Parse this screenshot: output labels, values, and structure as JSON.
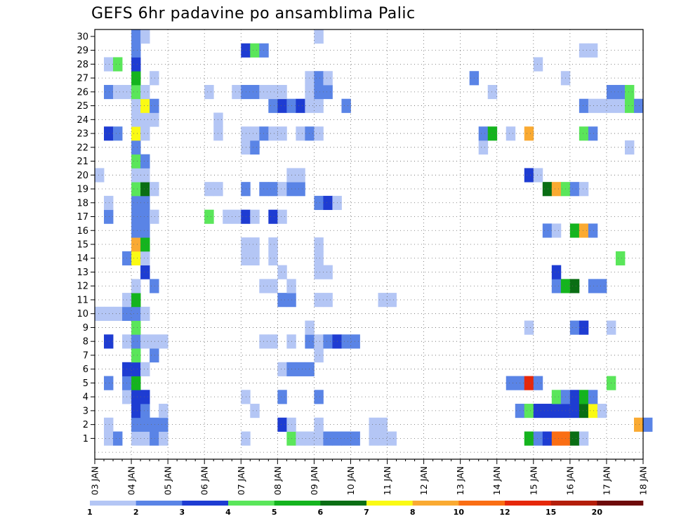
{
  "chart_data": {
    "type": "heatmap",
    "title": "GEFS 6hr padavine po ansamblima Palic",
    "xlabel": "",
    "ylabel": "",
    "x_ticks": [
      "03 JAN",
      "04 JAN",
      "05 JAN",
      "06 JAN",
      "07 JAN",
      "08 JAN",
      "09 JAN",
      "10 JAN",
      "11 JAN",
      "12 JAN",
      "13 JAN",
      "14 JAN",
      "15 JAN",
      "16 JAN",
      "17 JAN",
      "18 JAN"
    ],
    "y_ticks": [
      "1",
      "2",
      "3",
      "4",
      "5",
      "6",
      "7",
      "8",
      "9",
      "10",
      "11",
      "12",
      "13",
      "14",
      "15",
      "16",
      "17",
      "18",
      "19",
      "20",
      "21",
      "22",
      "23",
      "24",
      "25",
      "26",
      "27",
      "28",
      "29",
      "30"
    ],
    "time_steps_per_day": 4,
    "grid": true,
    "legend_position": "bottom",
    "colorbar": {
      "labels": [
        "1",
        "2",
        "3",
        "4",
        "5",
        "6",
        "7",
        "8",
        "10",
        "12",
        "15",
        "20"
      ],
      "colors": [
        "#b4c6f5",
        "#5a84e6",
        "#1e3cd2",
        "#5ae65a",
        "#14b41e",
        "#0a6e14",
        "#fafa14",
        "#faaa32",
        "#fa6e14",
        "#e6280a",
        "#b41e0a",
        "#6e0a0a"
      ]
    },
    "cells": [
      {
        "m": 1,
        "t": [
          [
            1,
            1
          ],
          [
            2,
            2
          ],
          [
            4,
            1
          ],
          [
            5,
            1
          ],
          [
            6,
            2
          ],
          [
            7,
            1
          ],
          [
            16,
            1
          ],
          [
            21,
            4
          ],
          [
            22,
            1
          ],
          [
            23,
            1
          ],
          [
            24,
            1
          ],
          [
            25,
            2
          ],
          [
            26,
            2
          ],
          [
            27,
            2
          ],
          [
            28,
            2
          ],
          [
            30,
            1
          ],
          [
            31,
            1
          ],
          [
            32,
            1
          ],
          [
            47,
            5
          ],
          [
            48,
            2
          ],
          [
            49,
            3
          ],
          [
            50,
            9
          ],
          [
            51,
            9
          ],
          [
            52,
            6
          ],
          [
            53,
            1
          ]
        ]
      },
      {
        "m": 2,
        "t": [
          [
            1,
            1
          ],
          [
            4,
            2
          ],
          [
            5,
            2
          ],
          [
            6,
            2
          ],
          [
            7,
            2
          ],
          [
            20,
            3
          ],
          [
            21,
            1
          ],
          [
            24,
            1
          ],
          [
            30,
            1
          ],
          [
            31,
            1
          ],
          [
            59,
            8
          ],
          [
            60,
            2
          ]
        ]
      },
      {
        "m": 3,
        "t": [
          [
            4,
            3
          ],
          [
            5,
            2
          ],
          [
            7,
            1
          ],
          [
            17,
            1
          ],
          [
            46,
            2
          ],
          [
            47,
            4
          ],
          [
            48,
            3
          ],
          [
            49,
            3
          ],
          [
            50,
            3
          ],
          [
            51,
            3
          ],
          [
            52,
            3
          ],
          [
            53,
            6
          ],
          [
            54,
            7
          ],
          [
            55,
            1
          ]
        ]
      },
      {
        "m": 4,
        "t": [
          [
            3,
            1
          ],
          [
            4,
            3
          ],
          [
            5,
            3
          ],
          [
            16,
            1
          ],
          [
            20,
            2
          ],
          [
            24,
            2
          ],
          [
            50,
            4
          ],
          [
            51,
            2
          ],
          [
            52,
            3
          ],
          [
            53,
            5
          ],
          [
            54,
            2
          ]
        ]
      },
      {
        "m": 5,
        "t": [
          [
            1,
            2
          ],
          [
            3,
            2
          ],
          [
            4,
            5
          ],
          [
            45,
            2
          ],
          [
            46,
            2
          ],
          [
            47,
            10
          ],
          [
            48,
            2
          ],
          [
            56,
            4
          ]
        ]
      },
      {
        "m": 6,
        "t": [
          [
            3,
            3
          ],
          [
            4,
            3
          ],
          [
            5,
            1
          ],
          [
            20,
            1
          ],
          [
            21,
            2
          ],
          [
            22,
            2
          ],
          [
            23,
            2
          ]
        ]
      },
      {
        "m": 7,
        "t": [
          [
            4,
            4
          ],
          [
            6,
            2
          ],
          [
            24,
            1
          ]
        ]
      },
      {
        "m": 8,
        "t": [
          [
            1,
            3
          ],
          [
            3,
            1
          ],
          [
            4,
            2
          ],
          [
            5,
            1
          ],
          [
            6,
            1
          ],
          [
            7,
            1
          ],
          [
            18,
            1
          ],
          [
            19,
            1
          ],
          [
            21,
            1
          ],
          [
            23,
            2
          ],
          [
            24,
            1
          ],
          [
            25,
            2
          ],
          [
            26,
            3
          ],
          [
            27,
            2
          ],
          [
            28,
            2
          ]
        ]
      },
      {
        "m": 9,
        "t": [
          [
            4,
            4
          ],
          [
            23,
            1
          ],
          [
            47,
            1
          ],
          [
            52,
            2
          ],
          [
            53,
            3
          ],
          [
            56,
            1
          ]
        ]
      },
      {
        "m": 10,
        "t": [
          [
            0,
            1
          ],
          [
            1,
            1
          ],
          [
            2,
            1
          ],
          [
            3,
            2
          ],
          [
            4,
            2
          ],
          [
            5,
            1
          ]
        ]
      },
      {
        "m": 11,
        "t": [
          [
            3,
            1
          ],
          [
            4,
            5
          ],
          [
            20,
            2
          ],
          [
            21,
            2
          ],
          [
            24,
            1
          ],
          [
            25,
            1
          ],
          [
            31,
            1
          ],
          [
            32,
            1
          ]
        ]
      },
      {
        "m": 12,
        "t": [
          [
            4,
            1
          ],
          [
            6,
            2
          ],
          [
            18,
            1
          ],
          [
            19,
            1
          ],
          [
            21,
            1
          ],
          [
            50,
            2
          ],
          [
            51,
            5
          ],
          [
            52,
            6
          ],
          [
            54,
            2
          ],
          [
            55,
            2
          ]
        ]
      },
      {
        "m": 13,
        "t": [
          [
            5,
            3
          ],
          [
            20,
            1
          ],
          [
            24,
            1
          ],
          [
            25,
            1
          ],
          [
            50,
            3
          ]
        ]
      },
      {
        "m": 14,
        "t": [
          [
            3,
            2
          ],
          [
            4,
            7
          ],
          [
            5,
            1
          ],
          [
            16,
            1
          ],
          [
            17,
            1
          ],
          [
            19,
            1
          ],
          [
            24,
            1
          ],
          [
            57,
            4
          ]
        ]
      },
      {
        "m": 15,
        "t": [
          [
            4,
            8
          ],
          [
            5,
            5
          ],
          [
            16,
            1
          ],
          [
            17,
            1
          ],
          [
            19,
            1
          ],
          [
            24,
            1
          ]
        ]
      },
      {
        "m": 16,
        "t": [
          [
            4,
            2
          ],
          [
            5,
            2
          ],
          [
            49,
            2
          ],
          [
            50,
            1
          ],
          [
            52,
            5
          ],
          [
            53,
            8
          ],
          [
            54,
            2
          ]
        ]
      },
      {
        "m": 17,
        "t": [
          [
            1,
            2
          ],
          [
            4,
            2
          ],
          [
            5,
            2
          ],
          [
            6,
            1
          ],
          [
            12,
            4
          ],
          [
            14,
            1
          ],
          [
            15,
            1
          ],
          [
            16,
            3
          ],
          [
            17,
            1
          ],
          [
            19,
            3
          ],
          [
            20,
            1
          ]
        ]
      },
      {
        "m": 18,
        "t": [
          [
            1,
            1
          ],
          [
            4,
            2
          ],
          [
            5,
            2
          ],
          [
            24,
            2
          ],
          [
            25,
            3
          ],
          [
            26,
            1
          ]
        ]
      },
      {
        "m": 19,
        "t": [
          [
            4,
            4
          ],
          [
            5,
            6
          ],
          [
            6,
            1
          ],
          [
            12,
            1
          ],
          [
            13,
            1
          ],
          [
            16,
            2
          ],
          [
            18,
            2
          ],
          [
            19,
            2
          ],
          [
            20,
            1
          ],
          [
            21,
            2
          ],
          [
            22,
            2
          ],
          [
            49,
            6
          ],
          [
            50,
            8
          ],
          [
            51,
            4
          ],
          [
            52,
            2
          ],
          [
            53,
            1
          ]
        ]
      },
      {
        "m": 20,
        "t": [
          [
            0,
            1
          ],
          [
            4,
            1
          ],
          [
            5,
            1
          ],
          [
            21,
            1
          ],
          [
            22,
            1
          ],
          [
            47,
            3
          ],
          [
            48,
            1
          ]
        ]
      },
      {
        "m": 21,
        "t": [
          [
            4,
            4
          ],
          [
            5,
            2
          ]
        ]
      },
      {
        "m": 22,
        "t": [
          [
            4,
            2
          ],
          [
            16,
            1
          ],
          [
            17,
            2
          ],
          [
            42,
            1
          ],
          [
            58,
            1
          ]
        ]
      },
      {
        "m": 23,
        "t": [
          [
            1,
            3
          ],
          [
            2,
            2
          ],
          [
            4,
            7
          ],
          [
            5,
            1
          ],
          [
            13,
            1
          ],
          [
            16,
            1
          ],
          [
            17,
            1
          ],
          [
            18,
            2
          ],
          [
            19,
            1
          ],
          [
            20,
            1
          ],
          [
            22,
            1
          ],
          [
            23,
            2
          ],
          [
            24,
            1
          ],
          [
            42,
            2
          ],
          [
            43,
            5
          ],
          [
            45,
            1
          ],
          [
            47,
            8
          ],
          [
            53,
            4
          ],
          [
            54,
            2
          ]
        ]
      },
      {
        "m": 24,
        "t": [
          [
            4,
            1
          ],
          [
            5,
            1
          ],
          [
            6,
            1
          ],
          [
            13,
            1
          ]
        ]
      },
      {
        "m": 25,
        "t": [
          [
            4,
            1
          ],
          [
            5,
            7
          ],
          [
            6,
            2
          ],
          [
            19,
            2
          ],
          [
            20,
            3
          ],
          [
            21,
            2
          ],
          [
            22,
            3
          ],
          [
            23,
            1
          ],
          [
            24,
            1
          ],
          [
            27,
            2
          ],
          [
            53,
            2
          ],
          [
            54,
            1
          ],
          [
            55,
            1
          ],
          [
            56,
            1
          ],
          [
            57,
            1
          ],
          [
            58,
            4
          ],
          [
            59,
            2
          ]
        ]
      },
      {
        "m": 26,
        "t": [
          [
            1,
            2
          ],
          [
            2,
            1
          ],
          [
            3,
            1
          ],
          [
            4,
            4
          ],
          [
            5,
            1
          ],
          [
            12,
            1
          ],
          [
            15,
            1
          ],
          [
            16,
            2
          ],
          [
            17,
            2
          ],
          [
            18,
            1
          ],
          [
            19,
            1
          ],
          [
            20,
            1
          ],
          [
            23,
            1
          ],
          [
            24,
            2
          ],
          [
            25,
            2
          ],
          [
            43,
            1
          ],
          [
            56,
            2
          ],
          [
            57,
            2
          ],
          [
            58,
            4
          ]
        ]
      },
      {
        "m": 27,
        "t": [
          [
            4,
            5
          ],
          [
            6,
            1
          ],
          [
            23,
            1
          ],
          [
            24,
            2
          ],
          [
            25,
            1
          ],
          [
            41,
            2
          ],
          [
            51,
            1
          ]
        ]
      },
      {
        "m": 28,
        "t": [
          [
            1,
            1
          ],
          [
            2,
            4
          ],
          [
            4,
            3
          ],
          [
            48,
            1
          ]
        ]
      },
      {
        "m": 29,
        "t": [
          [
            4,
            2
          ],
          [
            16,
            3
          ],
          [
            17,
            4
          ],
          [
            18,
            2
          ],
          [
            53,
            1
          ],
          [
            54,
            1
          ]
        ]
      },
      {
        "m": 30,
        "t": [
          [
            4,
            2
          ],
          [
            5,
            1
          ],
          [
            24,
            1
          ]
        ]
      }
    ]
  }
}
